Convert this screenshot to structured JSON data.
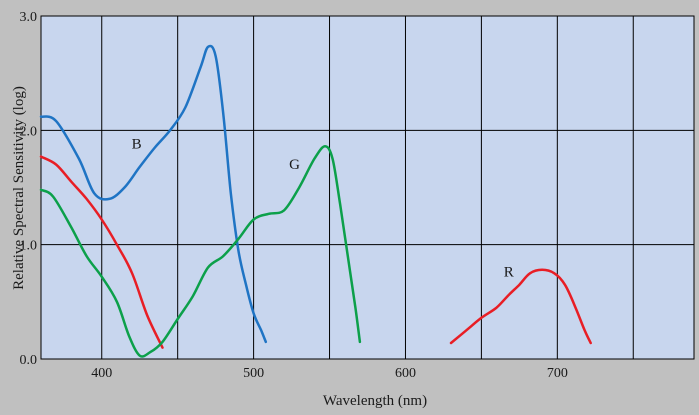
{
  "chart_data": {
    "type": "line",
    "title": "",
    "xlabel": "Wavelength (nm)",
    "ylabel": "Relative Spectral Sensitivity (log)",
    "xlim": [
      360,
      790
    ],
    "ylim": [
      0.0,
      3.0
    ],
    "x_ticks": [
      400,
      500,
      600,
      700
    ],
    "x_tick_labels": [
      "400",
      "500",
      "600",
      "700"
    ],
    "x_grid": [
      400,
      450,
      500,
      550,
      600,
      650,
      700,
      750
    ],
    "y_ticks": [
      0.0,
      1.0,
      2.0,
      3.0
    ],
    "y_tick_labels": [
      "0.0",
      "1.0",
      "2.0",
      "3.0"
    ],
    "grid": true,
    "legend": "none",
    "colors": {
      "page_background": "#c0c0c0",
      "plot_background": "#c8d6ee",
      "grid": "#000000"
    },
    "series": [
      {
        "name": "B",
        "label_x": 423,
        "label_y": 1.84,
        "color": "#1f74c4",
        "x": [
          360,
          370,
          385,
          395,
          405,
          415,
          425,
          435,
          445,
          455,
          465,
          470,
          475,
          480,
          485,
          490,
          495,
          500,
          505,
          508
        ],
        "y": [
          2.12,
          2.08,
          1.75,
          1.45,
          1.4,
          1.5,
          1.68,
          1.85,
          2.0,
          2.2,
          2.55,
          2.73,
          2.65,
          2.15,
          1.45,
          0.95,
          0.65,
          0.4,
          0.25,
          0.15
        ]
      },
      {
        "name": "",
        "color": "#e81e25",
        "x": [
          360,
          370,
          380,
          390,
          400,
          410,
          420,
          430,
          440
        ],
        "y": [
          1.77,
          1.7,
          1.55,
          1.4,
          1.22,
          1.0,
          0.75,
          0.38,
          0.1
        ]
      },
      {
        "name": "G",
        "label_x": 527,
        "label_y": 1.66,
        "color": "#0ca04a",
        "x": [
          360,
          368,
          380,
          390,
          400,
          410,
          418,
          425,
          432,
          440,
          450,
          460,
          470,
          480,
          490,
          500,
          510,
          520,
          530,
          540,
          547,
          552,
          557,
          562,
          567,
          570
        ],
        "y": [
          1.48,
          1.42,
          1.15,
          0.9,
          0.72,
          0.5,
          0.2,
          0.03,
          0.06,
          0.15,
          0.35,
          0.55,
          0.8,
          0.9,
          1.05,
          1.22,
          1.27,
          1.3,
          1.5,
          1.75,
          1.86,
          1.75,
          1.35,
          0.9,
          0.45,
          0.15
        ]
      },
      {
        "name": "R",
        "label_x": 668,
        "label_y": 0.72,
        "color": "#e81e25",
        "x": [
          630,
          640,
          650,
          660,
          668,
          675,
          682,
          690,
          698,
          705,
          712,
          718,
          722
        ],
        "y": [
          0.14,
          0.25,
          0.36,
          0.45,
          0.56,
          0.65,
          0.75,
          0.78,
          0.75,
          0.65,
          0.45,
          0.25,
          0.14
        ]
      }
    ]
  }
}
